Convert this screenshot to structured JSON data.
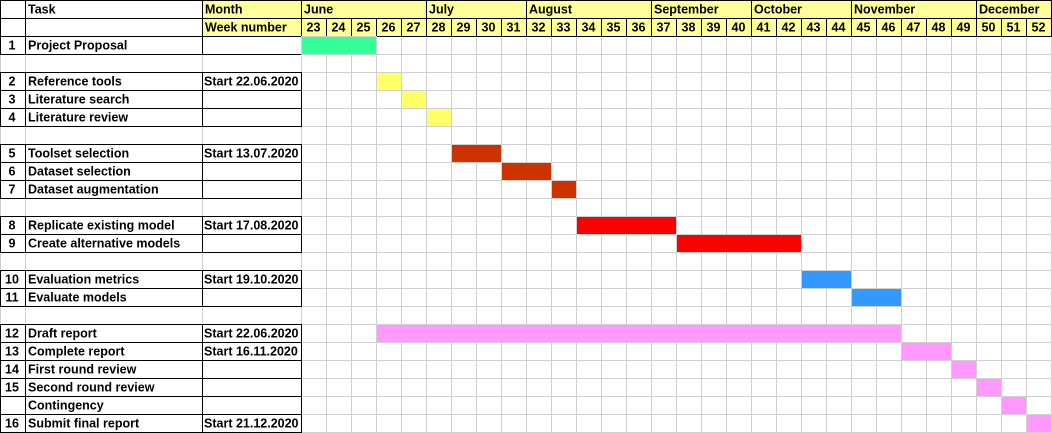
{
  "header": {
    "task": "Task",
    "month": "Month",
    "week_number": "Week number"
  },
  "months": [
    {
      "label": "June",
      "start_week": 23
    },
    {
      "label": "July",
      "start_week": 28
    },
    {
      "label": "August",
      "start_week": 32
    },
    {
      "label": "September",
      "start_week": 37
    },
    {
      "label": "October",
      "start_week": 41
    },
    {
      "label": "November",
      "start_week": 45
    },
    {
      "label": "December",
      "start_week": 50
    }
  ],
  "weeks": [
    23,
    24,
    25,
    26,
    27,
    28,
    29,
    30,
    31,
    32,
    33,
    34,
    35,
    36,
    37,
    38,
    39,
    40,
    41,
    42,
    43,
    44,
    45,
    46,
    47,
    48,
    49,
    50,
    51,
    52
  ],
  "rows": [
    {
      "number": 1,
      "task": "Project Proposal",
      "bar": {
        "from": 23,
        "to": 25,
        "color": "#33ff99"
      }
    },
    null,
    {
      "number": 2,
      "task": "Reference tools",
      "start": "Start 22.06.2020",
      "bar": {
        "from": 26,
        "to": 26,
        "color": "#ffff66"
      }
    },
    {
      "number": 3,
      "task": "Literature search",
      "bar": {
        "from": 27,
        "to": 27,
        "color": "#ffff66"
      }
    },
    {
      "number": 4,
      "task": "Literature review",
      "bar": {
        "from": 28,
        "to": 28,
        "color": "#ffff66"
      }
    },
    null,
    {
      "number": 5,
      "task": "Toolset selection",
      "start": "Start 13.07.2020",
      "bar": {
        "from": 29,
        "to": 30,
        "color": "#cc3300"
      }
    },
    {
      "number": 6,
      "task": "Dataset selection",
      "bar": {
        "from": 31,
        "to": 32,
        "color": "#cc3300"
      }
    },
    {
      "number": 7,
      "task": "Dataset augmentation",
      "bar": {
        "from": 33,
        "to": 33,
        "color": "#cc3300"
      }
    },
    null,
    {
      "number": 8,
      "task": "Replicate existing model",
      "start": "Start 17.08.2020",
      "bar": {
        "from": 34,
        "to": 37,
        "color": "#ff0000"
      }
    },
    {
      "number": 9,
      "task": "Create alternative models",
      "bar": {
        "from": 38,
        "to": 42,
        "color": "#ff0000"
      }
    },
    null,
    {
      "number": 10,
      "task": "Evaluation metrics",
      "start": "Start 19.10.2020",
      "bar": {
        "from": 43,
        "to": 44,
        "color": "#3399ff"
      }
    },
    {
      "number": 11,
      "task": "Evaluate models",
      "bar": {
        "from": 45,
        "to": 46,
        "color": "#3399ff"
      }
    },
    null,
    {
      "number": 12,
      "task": "Draft report",
      "start": "Start 22.06.2020",
      "bar": {
        "from": 26,
        "to": 46,
        "color": "#ff99ff"
      }
    },
    {
      "number": 13,
      "task": "Complete report",
      "start": "Start 16.11.2020",
      "bar": {
        "from": 47,
        "to": 48,
        "color": "#ff99ff"
      }
    },
    {
      "number": 14,
      "task": "First round review",
      "bar": {
        "from": 49,
        "to": 49,
        "color": "#ff99ff"
      }
    },
    {
      "number": 15,
      "task": "Second round review",
      "bar": {
        "from": 50,
        "to": 50,
        "color": "#ff99ff"
      }
    },
    {
      "task": "Contingency",
      "bar": {
        "from": 51,
        "to": 51,
        "color": "#ff99ff"
      }
    },
    {
      "number": 16,
      "task": "Submit final report",
      "start": "Start 21.12.2020",
      "bar": {
        "from": 52,
        "to": 52,
        "color": "#ff99ff"
      }
    }
  ]
}
